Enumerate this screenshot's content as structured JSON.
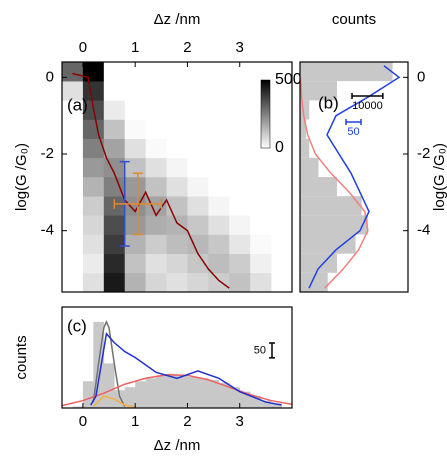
{
  "chart_data": [
    {
      "type": "heatmap",
      "title": "(a)",
      "xlabel": "Δz /nm",
      "ylabel": "log(G /G₀)",
      "xlim": [
        -0.4,
        4.0
      ],
      "ylim": [
        -5.6,
        0.4
      ],
      "xticks": [
        0,
        1,
        2,
        3
      ],
      "yticks": [
        0,
        -2,
        -4
      ],
      "xbins": [
        -0.4,
        0,
        0.4,
        0.8,
        1.2,
        1.6,
        2.0,
        2.4,
        2.8,
        3.2,
        3.6
      ],
      "ybins": [
        -5.6,
        -5.1,
        -4.6,
        -4.1,
        -3.6,
        -3.1,
        -2.6,
        -2.1,
        -1.6,
        -1.1,
        -0.6,
        -0.1,
        0.4
      ],
      "counts": [
        [
          0,
          60,
          450,
          150,
          80,
          60,
          80,
          100,
          120,
          60
        ],
        [
          0,
          40,
          420,
          120,
          60,
          80,
          110,
          130,
          100,
          30
        ],
        [
          0,
          60,
          380,
          150,
          100,
          130,
          140,
          110,
          50,
          10
        ],
        [
          0,
          80,
          350,
          200,
          160,
          150,
          110,
          60,
          20,
          0
        ],
        [
          0,
          100,
          300,
          220,
          180,
          120,
          60,
          20,
          0,
          0
        ],
        [
          0,
          150,
          250,
          200,
          120,
          60,
          20,
          0,
          0,
          0
        ],
        [
          0,
          200,
          220,
          120,
          60,
          20,
          0,
          0,
          0,
          0
        ],
        [
          0,
          250,
          180,
          60,
          10,
          0,
          0,
          0,
          0,
          0
        ],
        [
          0,
          300,
          120,
          10,
          0,
          0,
          0,
          0,
          0,
          0
        ],
        [
          0,
          350,
          40,
          0,
          0,
          0,
          0,
          0,
          0,
          0
        ],
        [
          60,
          400,
          0,
          0,
          0,
          0,
          0,
          0,
          0,
          0
        ],
        [
          300,
          500,
          0,
          0,
          0,
          0,
          0,
          0,
          0,
          0
        ]
      ],
      "colorbar": {
        "lim": [
          0,
          500
        ],
        "ticks": [
          0,
          500
        ]
      },
      "series": [
        {
          "color": "#8b0000",
          "x": [
            -0.2,
            0.1,
            0.2,
            0.3,
            0.45,
            0.6,
            0.8,
            1.0,
            1.2,
            1.4,
            1.6,
            1.8,
            2.0,
            2.2,
            2.4,
            2.6,
            2.8
          ],
          "y": [
            0.1,
            0.0,
            -0.8,
            -1.5,
            -2.1,
            -2.5,
            -3.2,
            -3.5,
            -3.0,
            -3.6,
            -3.2,
            -3.8,
            -4.0,
            -4.6,
            -5.0,
            -5.3,
            -5.5
          ]
        }
      ],
      "error_bars": [
        {
          "x": 0.8,
          "y": -3.3,
          "yerr": 1.1,
          "color": "#3050d0"
        },
        {
          "x": 1.05,
          "y": -3.3,
          "xerr": 0.45,
          "yerr": 0.8,
          "color": "#e08a30"
        }
      ]
    },
    {
      "type": "histogram",
      "orientation": "horizontal",
      "title": "(b)",
      "xlabel": "counts",
      "ylabel": "log(G /G₀)",
      "xlim": [
        0,
        35000
      ],
      "x2lim": [
        0,
        360
      ],
      "ylim": [
        -5.6,
        0.4
      ],
      "yticks": [
        0,
        -2,
        -4
      ],
      "bins": [
        -5.6,
        -5.1,
        -4.6,
        -4.1,
        -3.6,
        -3.1,
        -2.6,
        -2.1,
        -1.6,
        -1.1,
        -0.6,
        -0.1,
        0.4
      ],
      "values": [
        9000,
        12000,
        18000,
        22000,
        20000,
        12000,
        6000,
        3000,
        2000,
        3000,
        12000,
        30000
      ],
      "color": "#c8c8c8",
      "series": [
        {
          "color": "#f08080",
          "y": [
            -5.5,
            -5,
            -4.5,
            -4,
            -3.5,
            -3,
            -2.5,
            -2,
            -1.5,
            -1,
            -0.5,
            0
          ],
          "x": [
            8000,
            14000,
            19000,
            22000,
            21000,
            16000,
            10000,
            5000,
            2500,
            1200,
            500,
            200
          ]
        },
        {
          "color": "#2040e0",
          "axis": "x2",
          "y": [
            -5.5,
            -5,
            -4.5,
            -4,
            -3.5,
            -3,
            -2.5,
            -2,
            -1.5,
            -1,
            -0.5,
            0,
            0.3
          ],
          "x": [
            30,
            60,
            120,
            200,
            230,
            200,
            170,
            130,
            90,
            120,
            230,
            330,
            280
          ]
        }
      ],
      "scale_bars": [
        {
          "value": 10000,
          "color": "#000000"
        },
        {
          "value": 50,
          "color": "#2040e0",
          "axis": "x2"
        }
      ]
    },
    {
      "type": "histogram",
      "orientation": "vertical",
      "title": "(c)",
      "xlabel": "Δz /nm",
      "ylabel": "counts",
      "xlim": [
        -0.4,
        4.0
      ],
      "ylim": [
        0,
        340
      ],
      "xticks": [
        0,
        1,
        2,
        3
      ],
      "bins": [
        -0.4,
        -0.2,
        0,
        0.2,
        0.4,
        0.6,
        0.8,
        1.0,
        1.2,
        1.4,
        1.6,
        1.8,
        2.0,
        2.2,
        2.4,
        2.6,
        2.8,
        3.0,
        3.2,
        3.4,
        3.6,
        3.8
      ],
      "values": [
        0,
        5,
        90,
        290,
        150,
        60,
        70,
        90,
        100,
        110,
        115,
        110,
        105,
        100,
        95,
        85,
        70,
        55,
        40,
        25,
        15
      ],
      "color": "#c8c8c8",
      "series": [
        {
          "color": "#707070",
          "x": [
            0.2,
            0.3,
            0.4,
            0.45,
            0.5,
            0.6,
            0.7,
            0.8
          ],
          "y": [
            20,
            150,
            270,
            290,
            270,
            150,
            40,
            5
          ]
        },
        {
          "color": "#f06060",
          "x": [
            -0.4,
            0,
            0.4,
            0.8,
            1.2,
            1.6,
            2.0,
            2.4,
            2.8,
            3.2,
            3.6,
            4.0
          ],
          "y": [
            8,
            25,
            50,
            80,
            100,
            112,
            110,
            95,
            70,
            45,
            25,
            12
          ]
        },
        {
          "color": "#f0b040",
          "x": [
            0.2,
            0.4,
            0.6,
            0.8,
            1.0
          ],
          "y": [
            5,
            40,
            30,
            10,
            2
          ]
        },
        {
          "color": "#2030d0",
          "x": [
            0.15,
            0.25,
            0.45,
            0.6,
            0.8,
            1.0,
            1.4,
            1.8,
            2.2,
            2.6,
            3.0,
            3.5,
            3.8
          ],
          "y": [
            10,
            40,
            250,
            220,
            190,
            170,
            120,
            100,
            125,
            100,
            55,
            20,
            10
          ]
        }
      ],
      "scale_bars": [
        {
          "value": 50,
          "color": "#000000"
        }
      ]
    }
  ]
}
